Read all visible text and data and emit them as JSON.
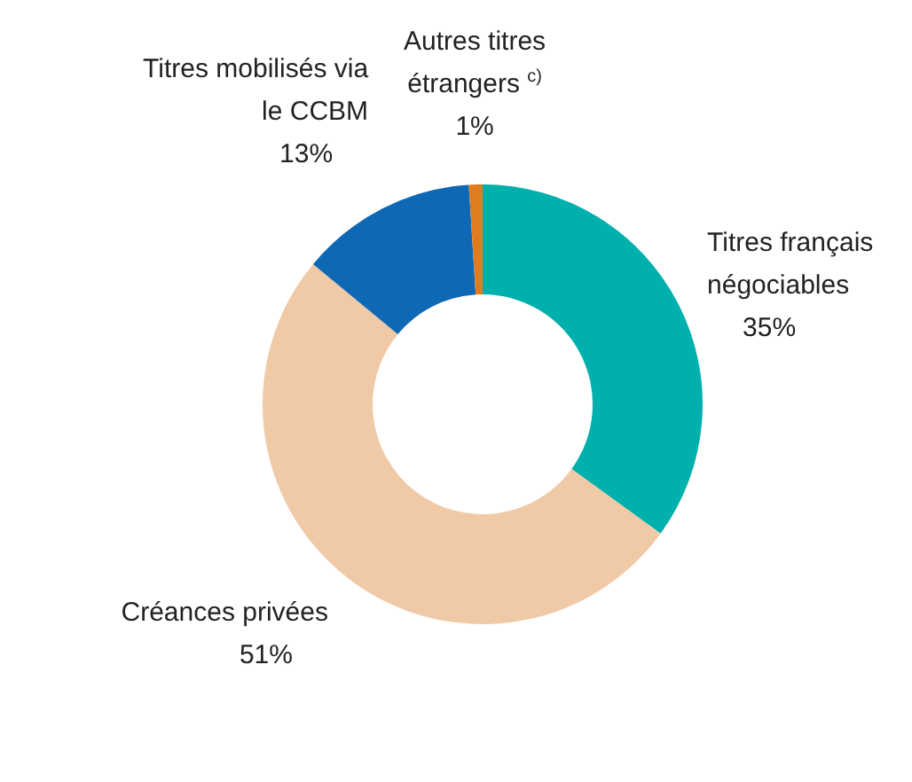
{
  "chart_data": {
    "type": "donut",
    "categories": [
      "Titres français négociables",
      "Créances privées",
      "Titres mobilisés via le CCBM",
      "Autres titres étrangers $^{c)}$"
    ],
    "values": [
      35,
      51,
      13,
      1
    ],
    "value_labels": [
      "35%",
      "51%",
      "13%",
      "1%"
    ],
    "colors": [
      "#00b0ac",
      "#f0c9a6",
      "#0f68b4",
      "#e07b20"
    ],
    "legend": false
  }
}
